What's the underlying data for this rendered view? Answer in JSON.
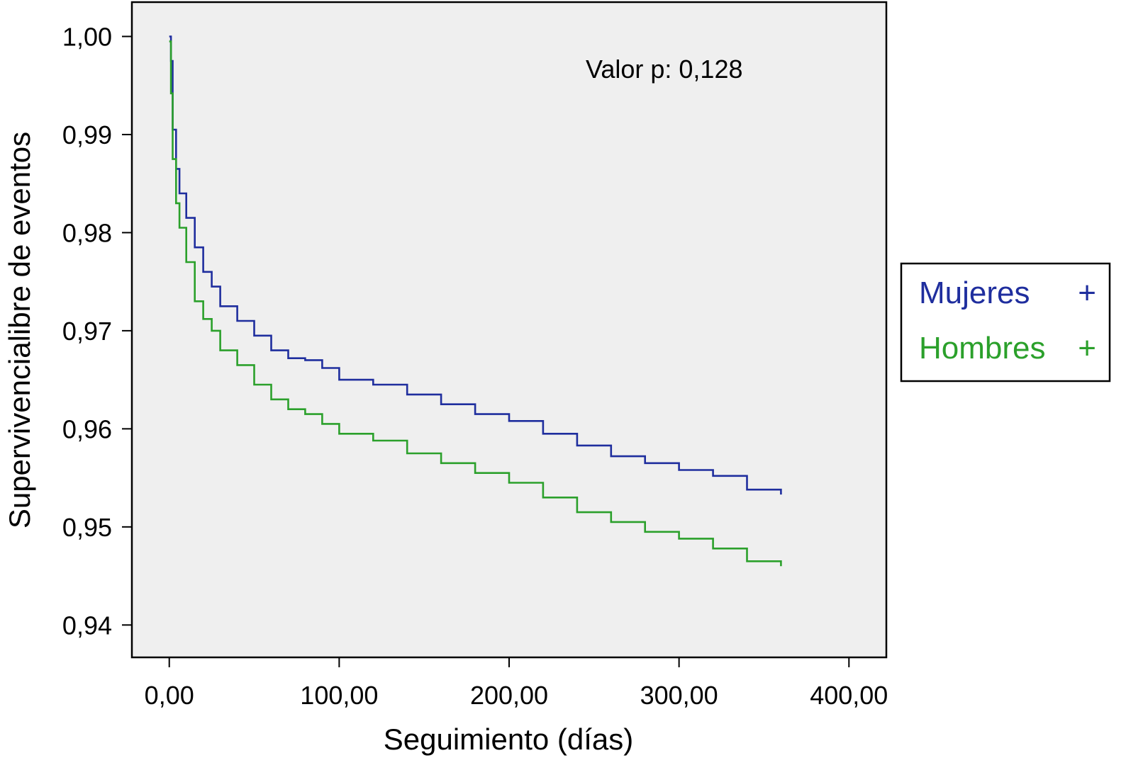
{
  "chart_data": {
    "type": "line",
    "title": "",
    "xlabel": "Seguimiento (días)",
    "ylabel": "Supervivencialibre de eventos",
    "xlim": [
      -22,
      422
    ],
    "ylim": [
      0.9367,
      1.0035
    ],
    "x_ticks": [
      0,
      100,
      200,
      300,
      400
    ],
    "x_tick_labels": [
      "0,00",
      "100,00",
      "200,00",
      "300,00",
      "400,00"
    ],
    "y_ticks": [
      0.94,
      0.95,
      0.96,
      0.97,
      0.98,
      0.99,
      1.0
    ],
    "y_tick_labels": [
      "0,94",
      "0,95",
      "0,96",
      "0,97",
      "0,98",
      "0,99",
      "1,00"
    ],
    "grid": false,
    "plot_background": "#efefef",
    "annotation": "Valor p: 0,128",
    "legend": {
      "placement": "right",
      "entries": [
        {
          "label": "Mujeres",
          "marker": "+",
          "color": "#1f2e9e"
        },
        {
          "label": "Hombres",
          "marker": "+",
          "color": "#2ba02b"
        }
      ]
    },
    "series": [
      {
        "name": "Mujeres",
        "color": "#1f2e9e",
        "points": [
          [
            0,
            1.0
          ],
          [
            1,
            0.9975
          ],
          [
            2,
            0.9905
          ],
          [
            4,
            0.9865
          ],
          [
            6,
            0.984
          ],
          [
            10,
            0.9815
          ],
          [
            15,
            0.9785
          ],
          [
            20,
            0.976
          ],
          [
            25,
            0.9745
          ],
          [
            30,
            0.9725
          ],
          [
            40,
            0.971
          ],
          [
            50,
            0.9695
          ],
          [
            60,
            0.968
          ],
          [
            70,
            0.9672
          ],
          [
            80,
            0.967
          ],
          [
            90,
            0.9662
          ],
          [
            100,
            0.965
          ],
          [
            120,
            0.9645
          ],
          [
            140,
            0.9635
          ],
          [
            160,
            0.9625
          ],
          [
            180,
            0.9615
          ],
          [
            200,
            0.9608
          ],
          [
            220,
            0.9595
          ],
          [
            240,
            0.9583
          ],
          [
            260,
            0.9572
          ],
          [
            280,
            0.9565
          ],
          [
            300,
            0.9558
          ],
          [
            320,
            0.9552
          ],
          [
            340,
            0.9538
          ],
          [
            360,
            0.9533
          ]
        ]
      },
      {
        "name": "Hombres",
        "color": "#2ba02b",
        "points": [
          [
            0,
            0.9995
          ],
          [
            1,
            0.9942
          ],
          [
            2,
            0.9875
          ],
          [
            4,
            0.983
          ],
          [
            6,
            0.9805
          ],
          [
            10,
            0.977
          ],
          [
            15,
            0.973
          ],
          [
            20,
            0.9712
          ],
          [
            25,
            0.97
          ],
          [
            30,
            0.968
          ],
          [
            40,
            0.9665
          ],
          [
            50,
            0.9645
          ],
          [
            60,
            0.963
          ],
          [
            70,
            0.962
          ],
          [
            80,
            0.9615
          ],
          [
            90,
            0.9605
          ],
          [
            100,
            0.9595
          ],
          [
            120,
            0.9588
          ],
          [
            140,
            0.9575
          ],
          [
            160,
            0.9565
          ],
          [
            180,
            0.9555
          ],
          [
            200,
            0.9545
          ],
          [
            220,
            0.953
          ],
          [
            240,
            0.9515
          ],
          [
            260,
            0.9505
          ],
          [
            280,
            0.9495
          ],
          [
            300,
            0.9488
          ],
          [
            320,
            0.9478
          ],
          [
            340,
            0.9465
          ],
          [
            360,
            0.946
          ]
        ]
      }
    ]
  }
}
